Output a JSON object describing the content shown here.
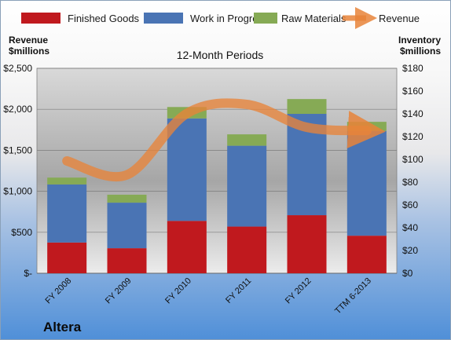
{
  "chart_data": {
    "type": "bar",
    "stacked": true,
    "title": "12-Month Periods",
    "company": "Altera",
    "categories": [
      "FY 2008",
      "FY 2009",
      "FY 2010",
      "FY 2011",
      "FY 2012",
      "TTM 6-2013"
    ],
    "left_axis": {
      "label_line1": "Revenue",
      "label_line2": "$millions",
      "ylim": [
        0,
        2500
      ],
      "ticks": [
        0,
        500,
        1000,
        1500,
        2000,
        2500
      ],
      "tick_labels": [
        "$-",
        "$500",
        "$1,000",
        "$1,500",
        "$2,000",
        "$2,500"
      ]
    },
    "right_axis": {
      "label_line1": "Inventory",
      "label_line2": "$millions",
      "ylim": [
        0,
        180
      ],
      "ticks": [
        0,
        20,
        40,
        60,
        80,
        100,
        120,
        140,
        160,
        180
      ],
      "tick_labels": [
        "$0",
        "$20",
        "$40",
        "$60",
        "$80",
        "$100",
        "$120",
        "$140",
        "$160",
        "$180"
      ]
    },
    "series": [
      {
        "name": "Finished Goods",
        "axis": "right",
        "color": "#c0191e",
        "values": [
          27,
          22,
          46,
          41,
          51,
          33
        ]
      },
      {
        "name": "Work in Progress",
        "axis": "right",
        "color": "#4a74b4",
        "values": [
          51,
          40,
          90,
          71,
          89,
          92
        ]
      },
      {
        "name": "Raw Materials",
        "axis": "right",
        "color": "#86aa55",
        "values": [
          6,
          7,
          10,
          10,
          13,
          8
        ]
      },
      {
        "name": "Revenue",
        "axis": "left",
        "type": "line",
        "color": "#e8843a",
        "values": [
          1370,
          1200,
          1950,
          2060,
          1780,
          1740
        ]
      }
    ],
    "legend_position": "top",
    "grid": true
  }
}
